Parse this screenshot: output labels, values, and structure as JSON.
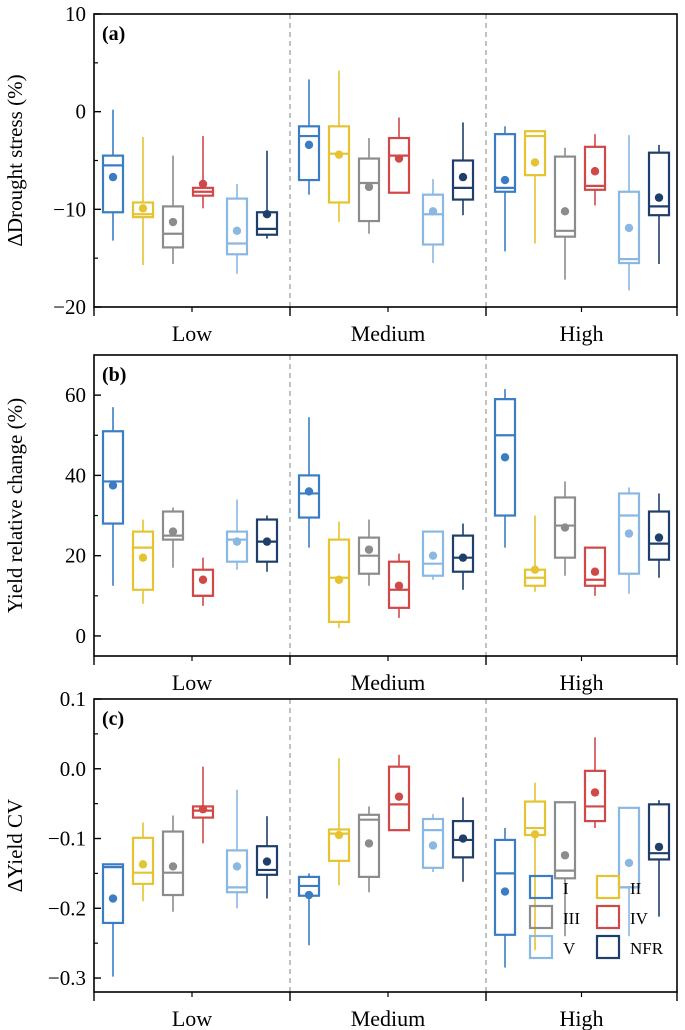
{
  "colors": {
    "I": "#3a7dc5",
    "II": "#e4c431",
    "III": "#8c8c8c",
    "IV": "#d14848",
    "V": "#8ab8e3",
    "NFR": "#1f3f6b"
  },
  "chart_data": [
    {
      "type": "box",
      "panel_label": "(a)",
      "ylabel": "ΔDrought stress (%)",
      "ylim": [
        -20,
        10
      ],
      "yticks": [
        "10",
        "0",
        "−10",
        "−20"
      ],
      "ytick_values": [
        10,
        0,
        -10,
        -20
      ],
      "categories": [
        "Low",
        "Medium",
        "High"
      ],
      "series": [
        {
          "name": "I",
          "boxes": [
            {
              "min": -13.2,
              "q1": -10.3,
              "median": -5.5,
              "q3": -4.5,
              "max": 0.2,
              "mean": -6.7
            },
            {
              "min": -8.5,
              "q1": -7.0,
              "median": -2.5,
              "q3": -1.5,
              "max": 3.3,
              "mean": -3.4
            },
            {
              "min": -14.3,
              "q1": -8.2,
              "median": -7.8,
              "q3": -2.3,
              "max": -1.5,
              "mean": -7.0
            }
          ]
        },
        {
          "name": "II",
          "boxes": [
            {
              "min": -15.7,
              "q1": -10.8,
              "median": -10.5,
              "q3": -9.3,
              "max": -2.6,
              "mean": -9.9
            },
            {
              "min": -11.3,
              "q1": -9.3,
              "median": -4.3,
              "q3": -1.5,
              "max": 4.2,
              "mean": -4.4
            },
            {
              "min": -13.5,
              "q1": -6.5,
              "median": -2.5,
              "q3": -2.0,
              "max": -2.0,
              "mean": -5.2
            }
          ]
        },
        {
          "name": "III",
          "boxes": [
            {
              "min": -15.6,
              "q1": -13.9,
              "median": -12.5,
              "q3": -9.7,
              "max": -4.5,
              "mean": -11.3
            },
            {
              "min": -12.5,
              "q1": -11.2,
              "median": -7.3,
              "q3": -4.8,
              "max": -2.7,
              "mean": -7.7
            },
            {
              "min": -17.2,
              "q1": -12.8,
              "median": -12.2,
              "q3": -4.6,
              "max": -3.7,
              "mean": -10.2
            }
          ]
        },
        {
          "name": "IV",
          "boxes": [
            {
              "min": -9.9,
              "q1": -8.6,
              "median": -8.2,
              "q3": -7.8,
              "max": -2.5,
              "mean": -7.4
            },
            {
              "min": -8.3,
              "q1": -8.3,
              "median": -4.5,
              "q3": -2.7,
              "max": -0.6,
              "mean": -4.8
            },
            {
              "min": -9.6,
              "q1": -8.0,
              "median": -7.6,
              "q3": -3.6,
              "max": -2.3,
              "mean": -6.1
            }
          ]
        },
        {
          "name": "V",
          "boxes": [
            {
              "min": -16.6,
              "q1": -14.6,
              "median": -13.5,
              "q3": -8.9,
              "max": -7.4,
              "mean": -12.2
            },
            {
              "min": -15.5,
              "q1": -13.6,
              "median": -10.5,
              "q3": -8.5,
              "max": -6.9,
              "mean": -10.2
            },
            {
              "min": -18.3,
              "q1": -15.5,
              "median": -15.1,
              "q3": -8.2,
              "max": -2.4,
              "mean": -11.9
            }
          ]
        },
        {
          "name": "NFR",
          "boxes": [
            {
              "min": -13.0,
              "q1": -12.6,
              "median": -12.0,
              "q3": -10.3,
              "max": -4.0,
              "mean": -10.5
            },
            {
              "min": -10.6,
              "q1": -9.0,
              "median": -7.8,
              "q3": -5.0,
              "max": -1.1,
              "mean": -6.7
            },
            {
              "min": -15.6,
              "q1": -10.6,
              "median": -9.7,
              "q3": -4.2,
              "max": -3.4,
              "mean": -8.8
            }
          ]
        }
      ]
    },
    {
      "type": "box",
      "panel_label": "(b)",
      "ylabel": "Yield relative change (%)",
      "ylim": [
        -5,
        70
      ],
      "yticks": [
        "60",
        "40",
        "20",
        "0"
      ],
      "ytick_values": [
        60,
        40,
        20,
        0
      ],
      "categories": [
        "Low",
        "Medium",
        "High"
      ],
      "series": [
        {
          "name": "I",
          "boxes": [
            {
              "min": 12.5,
              "q1": 28.0,
              "median": 38.5,
              "q3": 51.0,
              "max": 57.0,
              "mean": 37.5
            },
            {
              "min": 22.0,
              "q1": 29.5,
              "median": 35.5,
              "q3": 40.0,
              "max": 54.5,
              "mean": 36.0
            },
            {
              "min": 22.0,
              "q1": 30.0,
              "median": 50.0,
              "q3": 59.0,
              "max": 61.5,
              "mean": 44.5
            }
          ]
        },
        {
          "name": "II",
          "boxes": [
            {
              "min": 8.0,
              "q1": 11.5,
              "median": 22.0,
              "q3": 26.0,
              "max": 29.0,
              "mean": 19.5
            },
            {
              "min": 2.0,
              "q1": 3.5,
              "median": 14.5,
              "q3": 24.0,
              "max": 28.5,
              "mean": 14.0
            },
            {
              "min": 11.0,
              "q1": 12.5,
              "median": 14.5,
              "q3": 16.5,
              "max": 30.0,
              "mean": 16.5
            }
          ]
        },
        {
          "name": "III",
          "boxes": [
            {
              "min": 17.0,
              "q1": 24.0,
              "median": 25.0,
              "q3": 31.0,
              "max": 32.0,
              "mean": 26.0
            },
            {
              "min": 12.5,
              "q1": 15.5,
              "median": 20.0,
              "q3": 24.5,
              "max": 29.0,
              "mean": 21.5
            },
            {
              "min": 15.0,
              "q1": 19.5,
              "median": 27.5,
              "q3": 34.5,
              "max": 38.5,
              "mean": 27.0
            }
          ]
        },
        {
          "name": "IV",
          "boxes": [
            {
              "min": 7.5,
              "q1": 10.0,
              "median": 10.0,
              "q3": 16.5,
              "max": 19.5,
              "mean": 14.0
            },
            {
              "min": 4.5,
              "q1": 7.0,
              "median": 11.5,
              "q3": 18.5,
              "max": 20.5,
              "mean": 12.5
            },
            {
              "min": 10.0,
              "q1": 12.5,
              "median": 14.0,
              "q3": 22.0,
              "max": 22.0,
              "mean": 16.0
            }
          ]
        },
        {
          "name": "V",
          "boxes": [
            {
              "min": 16.5,
              "q1": 18.5,
              "median": 24.0,
              "q3": 26.0,
              "max": 34.0,
              "mean": 23.5
            },
            {
              "min": 14.0,
              "q1": 15.0,
              "median": 18.0,
              "q3": 26.0,
              "max": 26.0,
              "mean": 20.0
            },
            {
              "min": 10.5,
              "q1": 15.5,
              "median": 30.0,
              "q3": 35.5,
              "max": 37.0,
              "mean": 25.5
            }
          ]
        },
        {
          "name": "NFR",
          "boxes": [
            {
              "min": 16.0,
              "q1": 18.5,
              "median": 23.5,
              "q3": 29.0,
              "max": 30.0,
              "mean": 23.5
            },
            {
              "min": 11.5,
              "q1": 16.0,
              "median": 19.5,
              "q3": 25.0,
              "max": 28.0,
              "mean": 19.5
            },
            {
              "min": 14.5,
              "q1": 19.0,
              "median": 23.0,
              "q3": 31.0,
              "max": 35.5,
              "mean": 24.5
            }
          ]
        }
      ]
    },
    {
      "type": "box",
      "panel_label": "(c)",
      "ylabel": "ΔYield CV",
      "ylim": [
        -0.32,
        0.1
      ],
      "yticks": [
        "0.1",
        "0.0",
        "−0.1",
        "−0.2",
        "−0.3"
      ],
      "ytick_values": [
        0.1,
        0.0,
        -0.1,
        -0.2,
        -0.3
      ],
      "categories": [
        "Low",
        "Medium",
        "High"
      ],
      "legend": {
        "position": "bottom-right",
        "entries": [
          "I",
          "II",
          "III",
          "IV",
          "V",
          "NFR"
        ]
      },
      "series": [
        {
          "name": "I",
          "boxes": [
            {
              "min": -0.298,
              "q1": -0.221,
              "median": -0.141,
              "q3": -0.137,
              "max": -0.137,
              "mean": -0.186
            },
            {
              "min": -0.253,
              "q1": -0.182,
              "median": -0.168,
              "q3": -0.155,
              "max": -0.15,
              "mean": -0.181
            },
            {
              "min": -0.285,
              "q1": -0.238,
              "median": -0.15,
              "q3": -0.102,
              "max": -0.085,
              "mean": -0.176
            }
          ]
        },
        {
          "name": "II",
          "boxes": [
            {
              "min": -0.19,
              "q1": -0.165,
              "median": -0.149,
              "q3": -0.099,
              "max": -0.077,
              "mean": -0.137
            },
            {
              "min": -0.167,
              "q1": -0.132,
              "median": -0.093,
              "q3": -0.087,
              "max": 0.015,
              "mean": -0.095
            },
            {
              "min": -0.26,
              "q1": -0.095,
              "median": -0.085,
              "q3": -0.047,
              "max": -0.02,
              "mean": -0.094
            }
          ]
        },
        {
          "name": "III",
          "boxes": [
            {
              "min": -0.205,
              "q1": -0.181,
              "median": -0.149,
              "q3": -0.09,
              "max": -0.067,
              "mean": -0.14
            },
            {
              "min": -0.177,
              "q1": -0.155,
              "median": -0.073,
              "q3": -0.066,
              "max": -0.054,
              "mean": -0.107
            },
            {
              "min": -0.24,
              "q1": -0.157,
              "median": -0.146,
              "q3": -0.048,
              "max": -0.048,
              "mean": -0.124
            }
          ]
        },
        {
          "name": "IV",
          "boxes": [
            {
              "min": -0.107,
              "q1": -0.07,
              "median": -0.06,
              "q3": -0.054,
              "max": 0.003,
              "mean": -0.058
            },
            {
              "min": -0.088,
              "q1": -0.088,
              "median": -0.051,
              "q3": 0.003,
              "max": 0.02,
              "mean": -0.04
            },
            {
              "min": -0.085,
              "q1": -0.075,
              "median": -0.054,
              "q3": -0.003,
              "max": 0.045,
              "mean": -0.034
            }
          ]
        },
        {
          "name": "V",
          "boxes": [
            {
              "min": -0.2,
              "q1": -0.177,
              "median": -0.17,
              "q3": -0.117,
              "max": -0.03,
              "mean": -0.14
            },
            {
              "min": -0.148,
              "q1": -0.142,
              "median": -0.088,
              "q3": -0.072,
              "max": -0.065,
              "mean": -0.11
            },
            {
              "min": -0.24,
              "q1": -0.17,
              "median": -0.17,
              "q3": -0.056,
              "max": -0.056,
              "mean": -0.135
            }
          ]
        },
        {
          "name": "NFR",
          "boxes": [
            {
              "min": -0.186,
              "q1": -0.152,
              "median": -0.145,
              "q3": -0.111,
              "max": -0.068,
              "mean": -0.133
            },
            {
              "min": -0.162,
              "q1": -0.127,
              "median": -0.102,
              "q3": -0.075,
              "max": -0.041,
              "mean": -0.1
            },
            {
              "min": -0.212,
              "q1": -0.13,
              "median": -0.121,
              "q3": -0.051,
              "max": -0.045,
              "mean": -0.112
            }
          ]
        }
      ]
    }
  ]
}
